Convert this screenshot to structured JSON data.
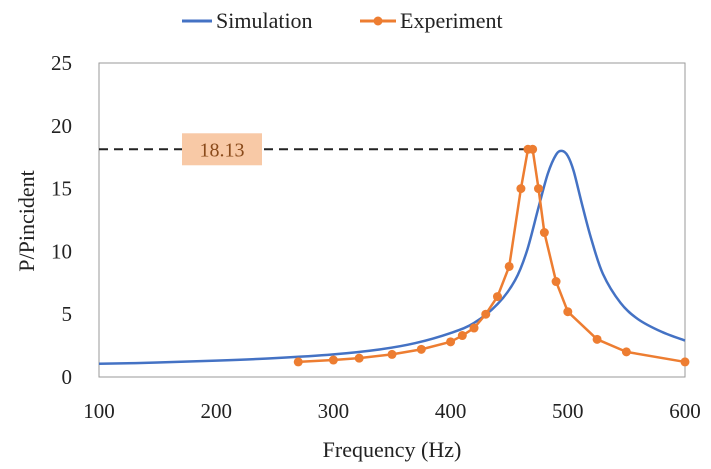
{
  "chart_data": {
    "type": "line",
    "title": "",
    "xlabel": "Frequency (Hz)",
    "ylabel": "P/Pincident",
    "xlim": [
      100,
      600
    ],
    "ylim": [
      0,
      25
    ],
    "xticks": [
      100,
      200,
      300,
      400,
      500,
      600
    ],
    "yticks": [
      0,
      5,
      10,
      15,
      20,
      25
    ],
    "xtick_labels": [
      "100",
      "200",
      "300",
      "400",
      "500",
      "600"
    ],
    "ytick_labels": [
      "0",
      "5",
      "10",
      "15",
      "20",
      "25"
    ],
    "grid": false,
    "legend_position": "top-center",
    "series": [
      {
        "name": "Simulation",
        "color": "#4472c4",
        "marker": "none",
        "x": [
          100,
          150,
          200,
          250,
          300,
          340,
          370,
          400,
          420,
          440,
          455,
          465,
          475,
          483,
          490,
          495,
          500,
          505,
          512,
          520,
          530,
          545,
          560,
          580,
          600
        ],
        "y": [
          1.05,
          1.15,
          1.3,
          1.5,
          1.8,
          2.2,
          2.7,
          3.5,
          4.3,
          5.8,
          7.7,
          10.0,
          13.5,
          16.2,
          17.7,
          18.0,
          17.6,
          16.4,
          13.8,
          11.0,
          8.2,
          5.9,
          4.6,
          3.6,
          2.9
        ]
      },
      {
        "name": "Experiment",
        "color": "#ed7d31",
        "marker": "circle",
        "x": [
          270,
          300,
          322,
          350,
          375,
          400,
          410,
          420,
          430,
          440,
          450,
          460,
          466,
          470,
          475,
          480,
          490,
          500,
          525,
          550,
          600
        ],
        "y": [
          1.2,
          1.35,
          1.5,
          1.8,
          2.2,
          2.8,
          3.3,
          3.9,
          5.0,
          6.4,
          8.8,
          15.0,
          18.13,
          18.13,
          15.0,
          11.5,
          7.6,
          5.2,
          3.0,
          2.0,
          1.2
        ]
      }
    ],
    "annotations": [
      {
        "text": "18.13",
        "x": 466,
        "y": 18.13,
        "style": "dashed horizontal reference line from y-axis to peak"
      }
    ]
  }
}
